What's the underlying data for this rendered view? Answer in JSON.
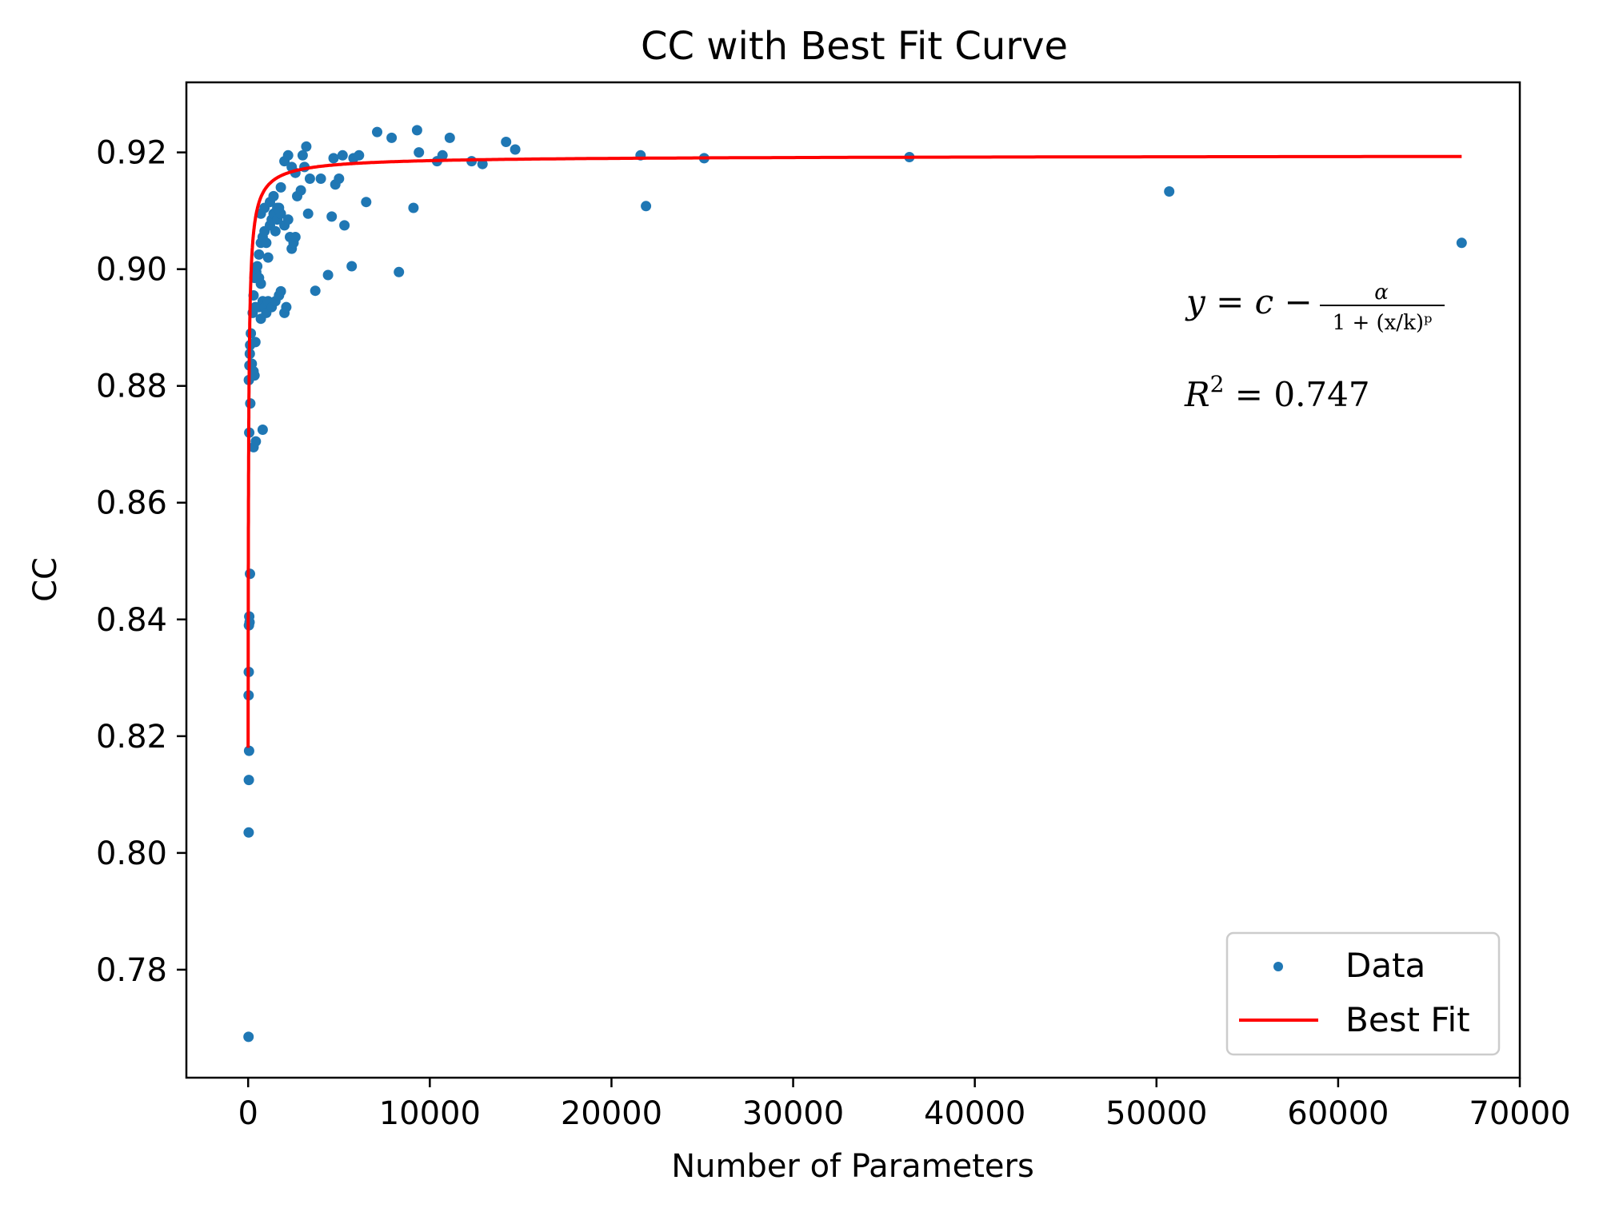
{
  "chart_data": {
    "type": "scatter",
    "title": "CC with Best Fit Curve",
    "xlabel": "Number of Parameters",
    "ylabel": "CC",
    "xlim": [
      -3400,
      70000
    ],
    "ylim": [
      0.7615,
      0.932
    ],
    "xticks": [
      0,
      10000,
      20000,
      30000,
      40000,
      50000,
      60000,
      70000
    ],
    "yticks": [
      0.78,
      0.8,
      0.82,
      0.84,
      0.86,
      0.88,
      0.9,
      0.92
    ],
    "grid": false,
    "legend_position": "lower-right",
    "colors": {
      "data": "#1f77b4",
      "fit": "#ff0000"
    },
    "series": [
      {
        "name": "Data",
        "kind": "scatter",
        "points": [
          [
            20,
            0.7685
          ],
          [
            30,
            0.8035
          ],
          [
            40,
            0.8125
          ],
          [
            50,
            0.8175
          ],
          [
            25,
            0.827
          ],
          [
            35,
            0.831
          ],
          [
            45,
            0.839
          ],
          [
            60,
            0.8405
          ],
          [
            80,
            0.8395
          ],
          [
            100,
            0.8478
          ],
          [
            60,
            0.872
          ],
          [
            120,
            0.877
          ],
          [
            40,
            0.881
          ],
          [
            70,
            0.8835
          ],
          [
            90,
            0.8855
          ],
          [
            110,
            0.887
          ],
          [
            150,
            0.889
          ],
          [
            200,
            0.8838
          ],
          [
            300,
            0.8825
          ],
          [
            350,
            0.8818
          ],
          [
            400,
            0.8875
          ],
          [
            250,
            0.8925
          ],
          [
            300,
            0.8955
          ],
          [
            350,
            0.8985
          ],
          [
            450,
            0.8995
          ],
          [
            500,
            0.9005
          ],
          [
            600,
            0.8985
          ],
          [
            700,
            0.8975
          ],
          [
            400,
            0.8935
          ],
          [
            600,
            0.8935
          ],
          [
            700,
            0.8915
          ],
          [
            800,
            0.8945
          ],
          [
            900,
            0.8935
          ],
          [
            1000,
            0.8925
          ],
          [
            1100,
            0.8945
          ],
          [
            1300,
            0.8935
          ],
          [
            1500,
            0.8945
          ],
          [
            1700,
            0.8955
          ],
          [
            1800,
            0.8962
          ],
          [
            2000,
            0.8925
          ],
          [
            2100,
            0.8935
          ],
          [
            300,
            0.8695
          ],
          [
            420,
            0.8705
          ],
          [
            800,
            0.8725
          ],
          [
            600,
            0.9025
          ],
          [
            700,
            0.9045
          ],
          [
            800,
            0.9055
          ],
          [
            900,
            0.9065
          ],
          [
            1000,
            0.9045
          ],
          [
            1100,
            0.902
          ],
          [
            1200,
            0.9075
          ],
          [
            1300,
            0.9085
          ],
          [
            1400,
            0.9095
          ],
          [
            1500,
            0.9065
          ],
          [
            1600,
            0.9085
          ],
          [
            1700,
            0.9105
          ],
          [
            1800,
            0.9095
          ],
          [
            2000,
            0.9075
          ],
          [
            2200,
            0.9085
          ],
          [
            2300,
            0.9055
          ],
          [
            2400,
            0.9035
          ],
          [
            2500,
            0.9045
          ],
          [
            2600,
            0.9055
          ],
          [
            700,
            0.9095
          ],
          [
            900,
            0.9105
          ],
          [
            1200,
            0.9115
          ],
          [
            1400,
            0.9125
          ],
          [
            1600,
            0.9105
          ],
          [
            1800,
            0.914
          ],
          [
            2000,
            0.9185
          ],
          [
            2200,
            0.9195
          ],
          [
            2400,
            0.9175
          ],
          [
            2600,
            0.9165
          ],
          [
            2700,
            0.9125
          ],
          [
            2900,
            0.9135
          ],
          [
            3000,
            0.9195
          ],
          [
            3100,
            0.9175
          ],
          [
            3200,
            0.921
          ],
          [
            3300,
            0.9095
          ],
          [
            3400,
            0.9155
          ],
          [
            3700,
            0.8963
          ],
          [
            4000,
            0.9155
          ],
          [
            4400,
            0.899
          ],
          [
            4600,
            0.909
          ],
          [
            4700,
            0.919
          ],
          [
            4800,
            0.9145
          ],
          [
            5000,
            0.9155
          ],
          [
            5200,
            0.9195
          ],
          [
            5300,
            0.9075
          ],
          [
            5700,
            0.9005
          ],
          [
            5800,
            0.919
          ],
          [
            6100,
            0.9195
          ],
          [
            6500,
            0.9115
          ],
          [
            7100,
            0.9235
          ],
          [
            7900,
            0.9225
          ],
          [
            8300,
            0.8995
          ],
          [
            9100,
            0.9105
          ],
          [
            9300,
            0.9238
          ],
          [
            9400,
            0.92
          ],
          [
            10400,
            0.9185
          ],
          [
            10700,
            0.9195
          ],
          [
            11100,
            0.9225
          ],
          [
            12300,
            0.9185
          ],
          [
            12900,
            0.918
          ],
          [
            14200,
            0.9218
          ],
          [
            14700,
            0.9205
          ],
          [
            21600,
            0.9195
          ],
          [
            21900,
            0.9108
          ],
          [
            25100,
            0.919
          ],
          [
            36400,
            0.9192
          ],
          [
            50700,
            0.9133
          ],
          [
            66800,
            0.9045
          ]
        ]
      },
      {
        "name": "Best Fit",
        "kind": "line",
        "model": {
          "c": 0.9195,
          "alpha": 0.1015,
          "k": 28,
          "p": 0.8
        },
        "x_range": [
          0,
          66800
        ]
      }
    ],
    "annotations": {
      "formula_lhs": "y = c −",
      "formula_num": "α",
      "formula_den": "1 + (x/k)ᵖ",
      "r2_label": "R",
      "r2_exp": "2",
      "r2_value": " = 0.747"
    }
  }
}
